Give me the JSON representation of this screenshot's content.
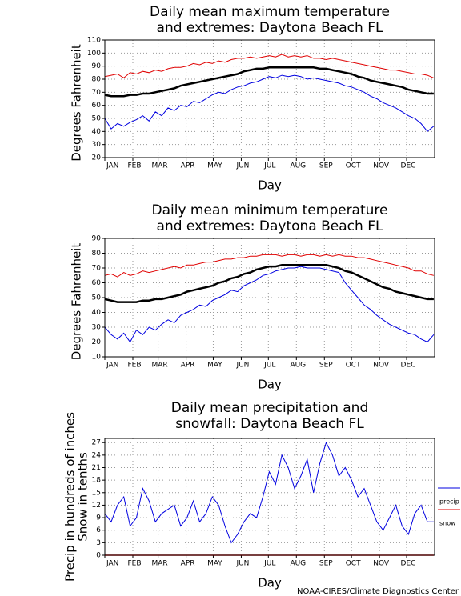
{
  "chart_data": [
    {
      "type": "line",
      "title": [
        "Daily mean maximum temperature",
        "and extremes: Daytona Beach FL"
      ],
      "ylabel": "Degrees Fahrenheit",
      "xlabel": "Day",
      "x": [
        1,
        8,
        15,
        22,
        29,
        36,
        43,
        50,
        57,
        64,
        71,
        78,
        85,
        92,
        99,
        106,
        113,
        120,
        127,
        134,
        141,
        148,
        155,
        162,
        169,
        176,
        183,
        190,
        197,
        204,
        211,
        218,
        225,
        232,
        239,
        246,
        253,
        260,
        267,
        274,
        281,
        288,
        295,
        302,
        309,
        316,
        323,
        330,
        337,
        344,
        351,
        358,
        365
      ],
      "xlim": [
        1,
        366
      ],
      "xticks": [
        {
          "value": 1,
          "label": "JAN"
        },
        {
          "value": 32,
          "label": "FEB"
        },
        {
          "value": 60,
          "label": "MAR"
        },
        {
          "value": 91,
          "label": "APR"
        },
        {
          "value": 121,
          "label": "MAY"
        },
        {
          "value": 152,
          "label": "JUN"
        },
        {
          "value": 182,
          "label": "JUL"
        },
        {
          "value": 213,
          "label": "AUG"
        },
        {
          "value": 244,
          "label": "SEP"
        },
        {
          "value": 274,
          "label": "OCT"
        },
        {
          "value": 305,
          "label": "NOV"
        },
        {
          "value": 335,
          "label": "DEC"
        }
      ],
      "ylim": [
        20,
        110
      ],
      "yticks": [
        20,
        30,
        40,
        50,
        60,
        70,
        80,
        90,
        100,
        110
      ],
      "grid": true,
      "series": [
        {
          "color": "#e00000",
          "width": 1,
          "values": [
            82,
            83,
            84,
            81,
            85,
            84,
            86,
            85,
            87,
            86,
            88,
            89,
            89,
            90,
            92,
            91,
            93,
            92,
            94,
            93,
            95,
            96,
            96,
            97,
            96,
            97,
            98,
            97,
            99,
            97,
            98,
            97,
            98,
            96,
            96,
            95,
            96,
            95,
            94,
            93,
            92,
            91,
            90,
            89,
            88,
            87,
            87,
            86,
            85,
            84,
            84,
            83,
            81
          ]
        },
        {
          "color": "#000000",
          "width": 2.5,
          "values": [
            68,
            67,
            67,
            67,
            68,
            68,
            69,
            69,
            70,
            71,
            72,
            73,
            75,
            76,
            77,
            78,
            79,
            80,
            81,
            82,
            83,
            84,
            86,
            87,
            88,
            88,
            89,
            89,
            89,
            89,
            89,
            89,
            89,
            89,
            88,
            88,
            87,
            86,
            85,
            84,
            82,
            81,
            79,
            78,
            77,
            76,
            75,
            74,
            72,
            71,
            70,
            69,
            69
          ]
        },
        {
          "color": "#0000e0",
          "width": 1,
          "values": [
            50,
            42,
            46,
            44,
            47,
            49,
            52,
            48,
            55,
            52,
            58,
            56,
            60,
            59,
            63,
            62,
            65,
            68,
            70,
            69,
            72,
            74,
            75,
            77,
            78,
            80,
            82,
            81,
            83,
            82,
            83,
            82,
            80,
            81,
            80,
            79,
            78,
            77,
            75,
            74,
            72,
            70,
            67,
            65,
            62,
            60,
            58,
            55,
            52,
            50,
            46,
            40,
            44
          ]
        }
      ]
    },
    {
      "type": "line",
      "title": [
        "Daily mean minimum temperature",
        "and extremes: Daytona Beach FL"
      ],
      "ylabel": "Degrees Fahrenheit",
      "xlabel": "Day",
      "x": [
        1,
        8,
        15,
        22,
        29,
        36,
        43,
        50,
        57,
        64,
        71,
        78,
        85,
        92,
        99,
        106,
        113,
        120,
        127,
        134,
        141,
        148,
        155,
        162,
        169,
        176,
        183,
        190,
        197,
        204,
        211,
        218,
        225,
        232,
        239,
        246,
        253,
        260,
        267,
        274,
        281,
        288,
        295,
        302,
        309,
        316,
        323,
        330,
        337,
        344,
        351,
        358,
        365
      ],
      "xlim": [
        1,
        366
      ],
      "xticks": [
        {
          "value": 1,
          "label": "JAN"
        },
        {
          "value": 32,
          "label": "FEB"
        },
        {
          "value": 60,
          "label": "MAR"
        },
        {
          "value": 91,
          "label": "APR"
        },
        {
          "value": 121,
          "label": "MAY"
        },
        {
          "value": 152,
          "label": "JUN"
        },
        {
          "value": 182,
          "label": "JUL"
        },
        {
          "value": 213,
          "label": "AUG"
        },
        {
          "value": 244,
          "label": "SEP"
        },
        {
          "value": 274,
          "label": "OCT"
        },
        {
          "value": 305,
          "label": "NOV"
        },
        {
          "value": 335,
          "label": "DEC"
        }
      ],
      "ylim": [
        10,
        90
      ],
      "yticks": [
        10,
        20,
        30,
        40,
        50,
        60,
        70,
        80,
        90
      ],
      "grid": true,
      "series": [
        {
          "color": "#e00000",
          "width": 1,
          "values": [
            65,
            66,
            64,
            67,
            65,
            66,
            68,
            67,
            68,
            69,
            70,
            71,
            70,
            72,
            72,
            73,
            74,
            74,
            75,
            76,
            76,
            77,
            77,
            78,
            78,
            79,
            79,
            79,
            78,
            79,
            79,
            78,
            79,
            79,
            78,
            79,
            78,
            79,
            78,
            78,
            77,
            77,
            76,
            75,
            74,
            73,
            72,
            71,
            70,
            68,
            68,
            66,
            65
          ]
        },
        {
          "color": "#000000",
          "width": 2.5,
          "values": [
            49,
            48,
            47,
            47,
            47,
            47,
            48,
            48,
            49,
            49,
            50,
            51,
            52,
            54,
            55,
            56,
            57,
            58,
            60,
            61,
            63,
            64,
            66,
            67,
            69,
            70,
            71,
            71,
            72,
            72,
            72,
            72,
            72,
            72,
            72,
            72,
            71,
            70,
            68,
            67,
            65,
            63,
            61,
            59,
            57,
            56,
            54,
            53,
            52,
            51,
            50,
            49,
            49
          ]
        },
        {
          "color": "#0000e0",
          "width": 1,
          "values": [
            30,
            25,
            22,
            26,
            20,
            28,
            25,
            30,
            28,
            32,
            35,
            33,
            38,
            40,
            42,
            45,
            44,
            48,
            50,
            52,
            55,
            54,
            58,
            60,
            62,
            65,
            66,
            68,
            69,
            70,
            70,
            71,
            70,
            70,
            70,
            69,
            68,
            67,
            60,
            55,
            50,
            45,
            42,
            38,
            35,
            32,
            30,
            28,
            26,
            25,
            22,
            20,
            25
          ]
        }
      ]
    },
    {
      "type": "line",
      "title": [
        "Daily mean precipitation and",
        "snowfall: Daytona Beach FL"
      ],
      "ylabel": [
        "Precip in hundreds of inches",
        "Snow in tenths"
      ],
      "xlabel": "Day",
      "x": [
        1,
        8,
        15,
        22,
        29,
        36,
        43,
        50,
        57,
        64,
        71,
        78,
        85,
        92,
        99,
        106,
        113,
        120,
        127,
        134,
        141,
        148,
        155,
        162,
        169,
        176,
        183,
        190,
        197,
        204,
        211,
        218,
        225,
        232,
        239,
        246,
        253,
        260,
        267,
        274,
        281,
        288,
        295,
        302,
        309,
        316,
        323,
        330,
        337,
        344,
        351,
        358,
        365
      ],
      "xlim": [
        1,
        366
      ],
      "xticks": [
        {
          "value": 1,
          "label": "JAN"
        },
        {
          "value": 32,
          "label": "FEB"
        },
        {
          "value": 60,
          "label": "MAR"
        },
        {
          "value": 91,
          "label": "APR"
        },
        {
          "value": 121,
          "label": "MAY"
        },
        {
          "value": 152,
          "label": "JUN"
        },
        {
          "value": 182,
          "label": "JUL"
        },
        {
          "value": 213,
          "label": "AUG"
        },
        {
          "value": 244,
          "label": "SEP"
        },
        {
          "value": 274,
          "label": "OCT"
        },
        {
          "value": 305,
          "label": "NOV"
        },
        {
          "value": 335,
          "label": "DEC"
        }
      ],
      "ylim": [
        0,
        28
      ],
      "yticks": [
        0,
        3,
        6,
        9,
        12,
        15,
        18,
        21,
        24,
        27
      ],
      "grid": true,
      "series": [
        {
          "name": "precip",
          "color": "#0000e0",
          "width": 1,
          "values": [
            10,
            8,
            12,
            14,
            7,
            9,
            16,
            13,
            8,
            10,
            11,
            12,
            7,
            9,
            13,
            8,
            10,
            14,
            12,
            7,
            3,
            5,
            8,
            10,
            9,
            14,
            20,
            17,
            24,
            21,
            16,
            19,
            23,
            15,
            22,
            27,
            24,
            19,
            21,
            18,
            14,
            16,
            12,
            8,
            6,
            9,
            12,
            7,
            5,
            10,
            12,
            8,
            8
          ]
        },
        {
          "name": "snow",
          "color": "#e00000",
          "width": 1.5,
          "values": [
            0,
            0,
            0,
            0,
            0,
            0,
            0,
            0,
            0,
            0,
            0,
            0,
            0,
            0,
            0,
            0,
            0,
            0,
            0,
            0,
            0,
            0,
            0,
            0,
            0,
            0,
            0,
            0,
            0,
            0,
            0,
            0,
            0,
            0,
            0,
            0,
            0,
            0,
            0,
            0,
            0,
            0,
            0,
            0,
            0,
            0,
            0,
            0,
            0,
            0,
            0,
            0,
            0
          ]
        }
      ]
    }
  ],
  "footer": "NOAA-CIRES/Climate Diagnostics Center"
}
